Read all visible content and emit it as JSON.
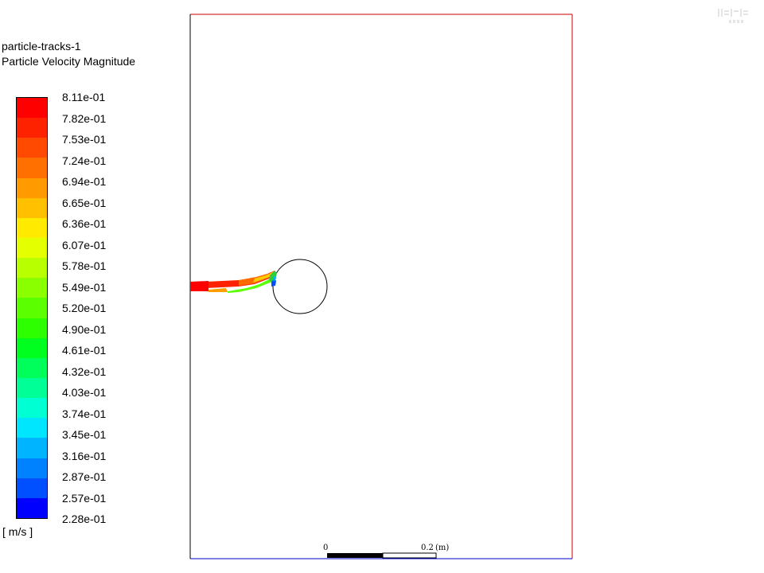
{
  "legend": {
    "title": "particle-tracks-1",
    "subtitle": "Particle Velocity Magnitude",
    "units": "[ m/s ]",
    "ticks": [
      "8.11e-01",
      "7.82e-01",
      "7.53e-01",
      "7.24e-01",
      "6.94e-01",
      "6.65e-01",
      "6.36e-01",
      "6.07e-01",
      "5.78e-01",
      "5.49e-01",
      "5.20e-01",
      "4.90e-01",
      "4.61e-01",
      "4.32e-01",
      "4.03e-01",
      "3.74e-01",
      "3.45e-01",
      "3.16e-01",
      "2.87e-01",
      "2.57e-01",
      "2.28e-01"
    ],
    "colors": [
      "#ff0000",
      "#ff2200",
      "#ff4a00",
      "#ff7000",
      "#ff9a00",
      "#ffc000",
      "#ffea00",
      "#e4ff00",
      "#b8ff00",
      "#8aff00",
      "#5cff00",
      "#2eff00",
      "#00ff1e",
      "#00ff5a",
      "#00ff96",
      "#00ffd2",
      "#00e6ff",
      "#00b4ff",
      "#0082ff",
      "#0050ff",
      "#0000ff"
    ]
  },
  "scale_bar": {
    "start_label": "0",
    "end_label": "0.2",
    "unit": "(m)"
  },
  "domain_colors": {
    "boundary_top_right": "#cc0000",
    "boundary_bottom": "#0000cc",
    "boundary_left": "#000000"
  },
  "icons": {
    "logo": "watermark-logo-icon"
  }
}
